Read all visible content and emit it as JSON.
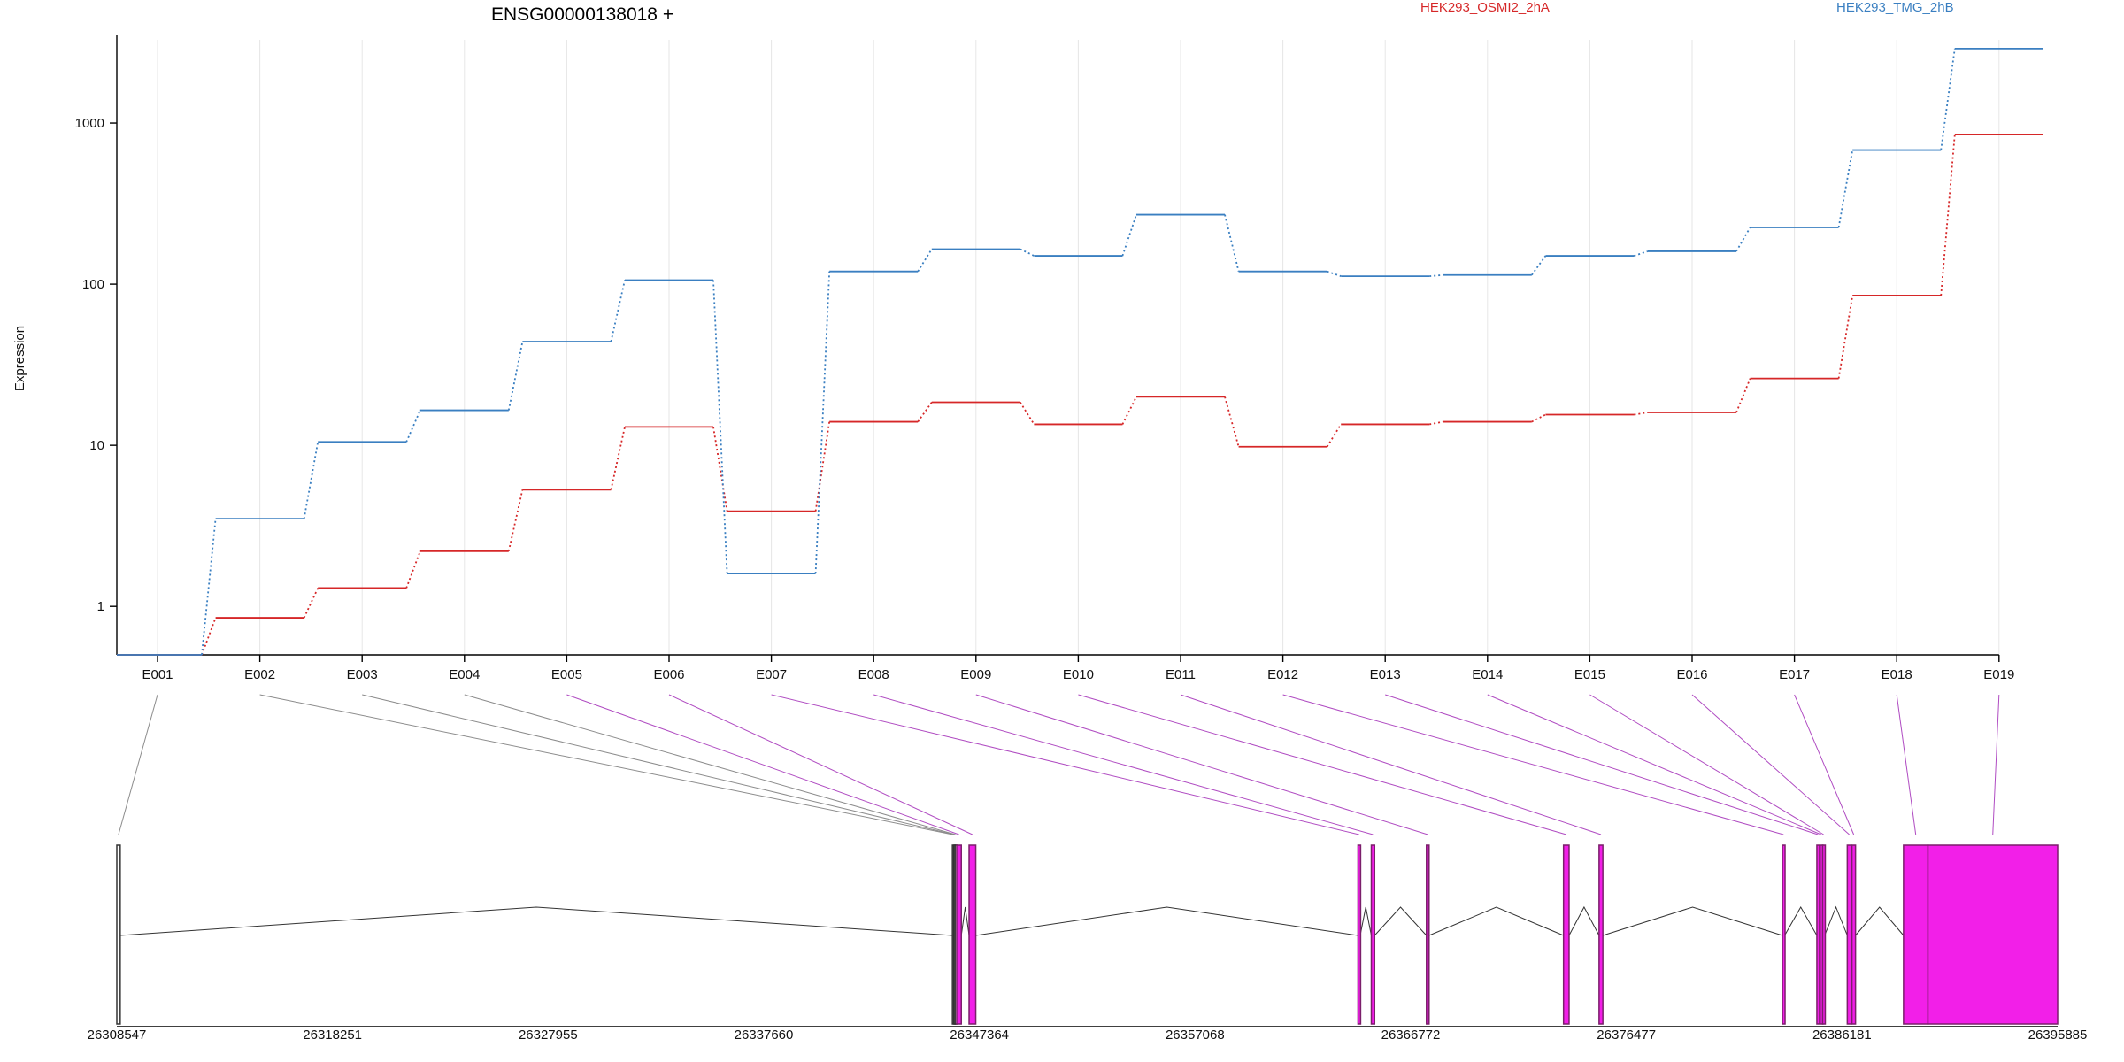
{
  "chart_data": {
    "type": "line",
    "title": "ENSG00000138018 +",
    "ylabel": "Expression",
    "xlabel": "",
    "yscale": "log",
    "ylim": [
      0.5,
      3500
    ],
    "grid": "vertical",
    "legend_position": "top-right",
    "colors": {
      "series_1": "#d62728",
      "series_2": "#3a7fc1",
      "exon_highlight": "#f21fe8",
      "exon_dark": "#7b1f6b",
      "connector_grey": "#8c8c8c",
      "connector_purple": "#b04cc2"
    },
    "categories": [
      "E001",
      "E002",
      "E003",
      "E004",
      "E005",
      "E006",
      "E007",
      "E008",
      "E009",
      "E010",
      "E011",
      "E012",
      "E013",
      "E014",
      "E015",
      "E016",
      "E017",
      "E018",
      "E019"
    ],
    "y_ticks": [
      1,
      10,
      100,
      1000
    ],
    "y_tick_labels": [
      "1",
      "10",
      "100",
      "1000"
    ],
    "series": [
      {
        "name": "HEK293_OSMI2_2hA",
        "color": "#d62728",
        "values": [
          0.5,
          0.85,
          1.3,
          2.2,
          5.3,
          13,
          3.9,
          14,
          18.5,
          13.5,
          20,
          9.8,
          13.5,
          14,
          15.5,
          16,
          26,
          85,
          850
        ]
      },
      {
        "name": "HEK293_TMG_2hB",
        "color": "#3a7fc1",
        "values": [
          0.5,
          3.5,
          10.5,
          16.5,
          44,
          106,
          1.6,
          120,
          165,
          150,
          270,
          120,
          112,
          114,
          150,
          160,
          225,
          680,
          2900
        ]
      }
    ],
    "exon_map": {
      "xlim": [
        26308547,
        26395885
      ],
      "x_ticks": [
        26308547,
        26318251,
        26327955,
        26337660,
        26347364,
        26357068,
        26366772,
        26376477,
        26386181,
        26395885
      ],
      "x_tick_labels": [
        "26308547",
        "26318251",
        "26327955",
        "26337660",
        "26347364",
        "26357068",
        "26366772",
        "26376477",
        "26386181",
        "26395885"
      ],
      "exons": [
        {
          "id": "E001",
          "start": 26308547,
          "end": 26308700,
          "highlighted": false
        },
        {
          "id": "E002",
          "start": 26346150,
          "end": 26346180,
          "highlighted": false
        },
        {
          "id": "E003",
          "start": 26346210,
          "end": 26346240,
          "highlighted": false
        },
        {
          "id": "E004",
          "start": 26346270,
          "end": 26346300,
          "highlighted": false
        },
        {
          "id": "E005",
          "start": 26346340,
          "end": 26346550,
          "highlighted": true
        },
        {
          "id": "E006",
          "start": 26346900,
          "end": 26347200,
          "highlighted": true
        },
        {
          "id": "E007",
          "start": 26364400,
          "end": 26364500,
          "highlighted": true
        },
        {
          "id": "E008",
          "start": 26365000,
          "end": 26365150,
          "highlighted": true
        },
        {
          "id": "E009",
          "start": 26367480,
          "end": 26367600,
          "highlighted": true
        },
        {
          "id": "E010",
          "start": 26373650,
          "end": 26373900,
          "highlighted": true
        },
        {
          "id": "E011",
          "start": 26375250,
          "end": 26375420,
          "highlighted": true
        },
        {
          "id": "E012",
          "start": 26383500,
          "end": 26383600,
          "highlighted": true
        },
        {
          "id": "E013",
          "start": 26385050,
          "end": 26385150,
          "highlighted": true
        },
        {
          "id": "E014",
          "start": 26385200,
          "end": 26385280,
          "highlighted": true
        },
        {
          "id": "E015",
          "start": 26385310,
          "end": 26385400,
          "highlighted": true
        },
        {
          "id": "E016",
          "start": 26386420,
          "end": 26386600,
          "highlighted": true
        },
        {
          "id": "E017",
          "start": 26386630,
          "end": 26386790,
          "highlighted": true
        },
        {
          "id": "E018",
          "start": 26388950,
          "end": 26390050,
          "highlighted": true
        },
        {
          "id": "E019",
          "start": 26390050,
          "end": 26395885,
          "highlighted": true
        }
      ]
    }
  }
}
